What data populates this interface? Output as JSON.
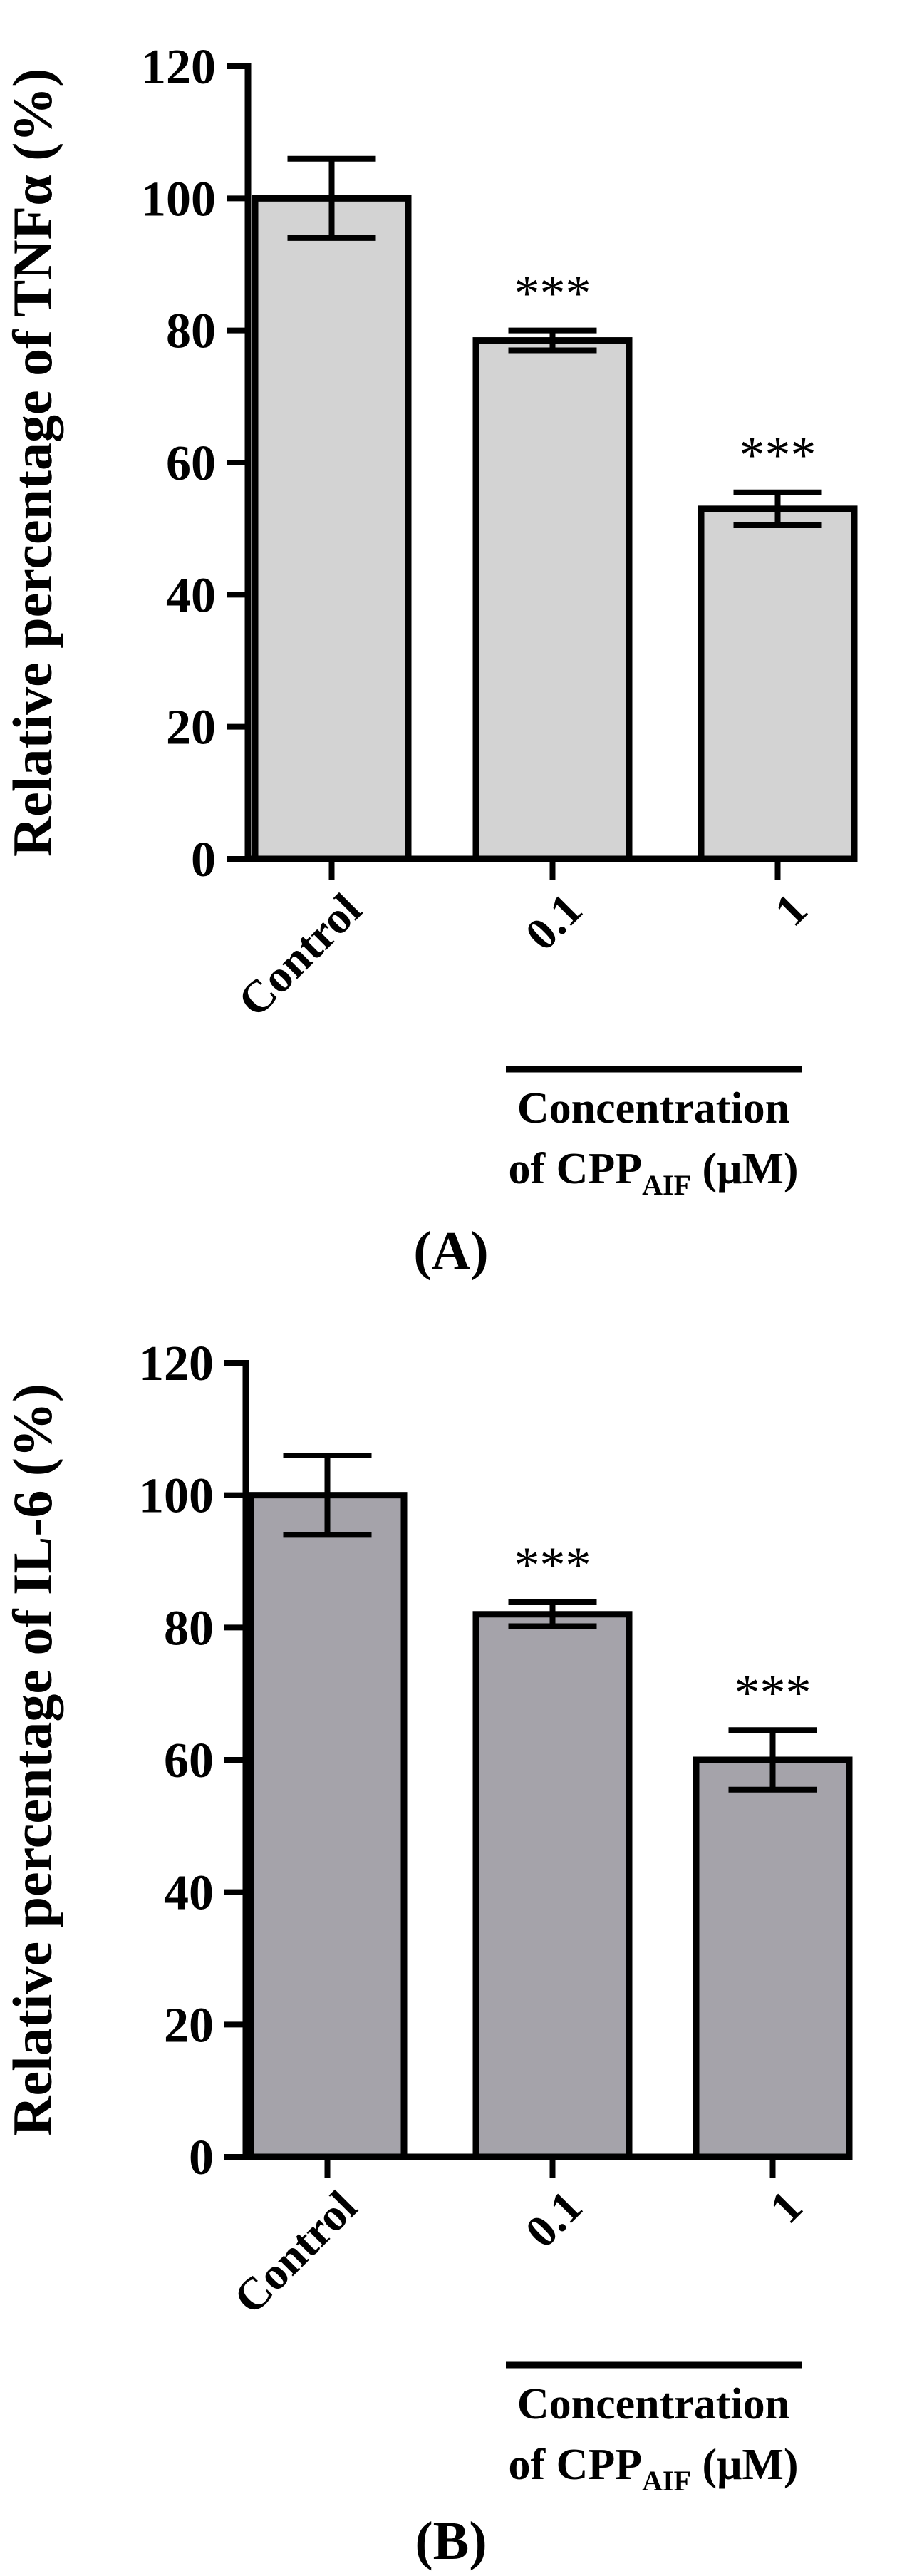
{
  "chart_data": [
    {
      "type": "bar",
      "panel_label": "(A)",
      "ylabel": "Relative percentage of TNFα (%)",
      "categories": [
        "Control",
        "0.1",
        "1"
      ],
      "values": [
        100,
        78.5,
        53
      ],
      "errors": [
        6,
        1.5,
        2.5
      ],
      "significance": [
        "",
        "***",
        "***"
      ],
      "ylim": [
        0,
        120
      ],
      "yticks": [
        0,
        20,
        40,
        60,
        80,
        100,
        120
      ],
      "ytick_labels": [
        "0",
        "20",
        "40",
        "60",
        "80",
        "100",
        "120"
      ],
      "bar_color": "#d3d3d3",
      "group_label_line1": "Concentration",
      "group_label_line2_prefix": "of CPP",
      "group_label_subscript": "AIF",
      "group_label_suffix": " (μM)"
    },
    {
      "type": "bar",
      "panel_label": "(B)",
      "ylabel": "Relative percentage of IL-6 (%)",
      "categories": [
        "Control",
        "0.1",
        "1"
      ],
      "values": [
        100,
        82,
        60
      ],
      "errors": [
        6,
        1.8,
        4.5
      ],
      "significance": [
        "",
        "***",
        "***"
      ],
      "ylim": [
        0,
        120
      ],
      "yticks": [
        0,
        20,
        40,
        60,
        80,
        100,
        120
      ],
      "ytick_labels": [
        "0",
        "20",
        "40",
        "60",
        "80",
        "100",
        "120"
      ],
      "bar_color": "#a5a3aa",
      "group_label_line1": "Concentration",
      "group_label_line2_prefix": "of CPP",
      "group_label_subscript": "AIF",
      "group_label_suffix": " (μM)"
    }
  ]
}
